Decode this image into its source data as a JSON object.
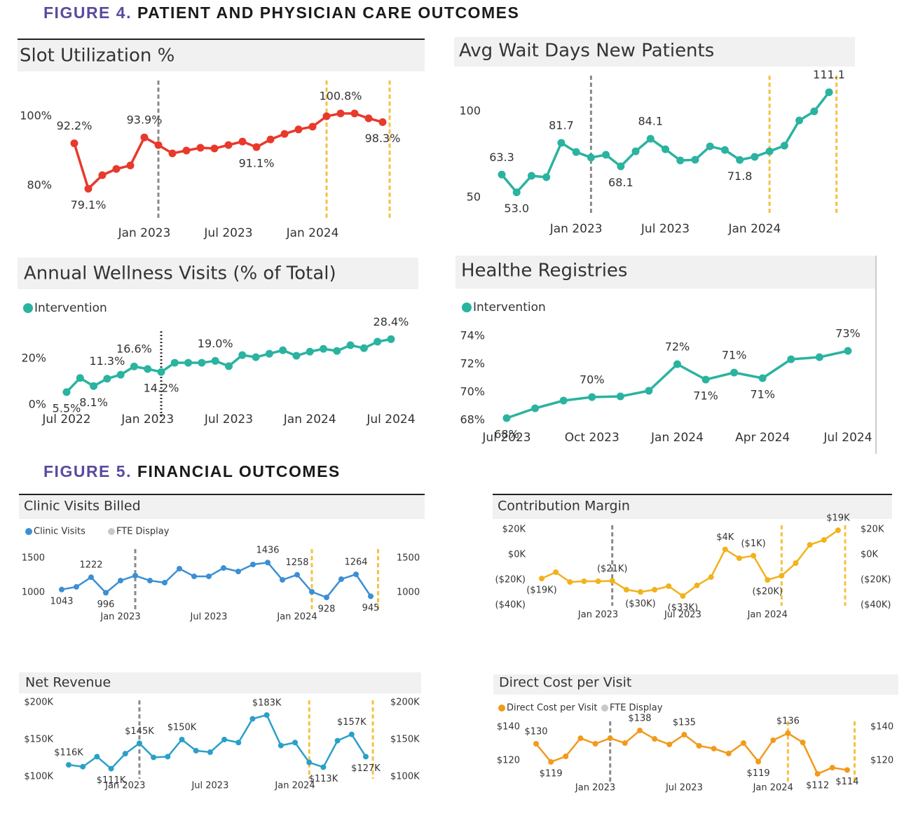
{
  "figures": [
    {
      "label": "FIGURE 4.",
      "title": "PATIENT AND PHYSICIAN CARE OUTCOMES"
    },
    {
      "label": "FIGURE 5.",
      "title": "FINANCIAL OUTCOMES"
    }
  ],
  "chart_data": [
    {
      "type": "line",
      "title": "Slot Utilization %",
      "categories": [
        null,
        null,
        null,
        null,
        null,
        "Jan 2023",
        null,
        null,
        null,
        null,
        null,
        "Jul 2023",
        null,
        null,
        null,
        null,
        null,
        "Jan 2024",
        null,
        null,
        null,
        null,
        null
      ],
      "color": "#e8392c",
      "values": [
        92.2,
        79.1,
        83,
        84.8,
        85.8,
        93.9,
        91.7,
        89.3,
        90.1,
        90.9,
        90.7,
        91.7,
        92.7,
        91.1,
        93.3,
        94.9,
        96.2,
        97,
        100,
        100.8,
        100.8,
        99.4,
        98.3
      ],
      "value_labels": [
        "92.2%",
        "79.1%",
        null,
        null,
        null,
        "93.9%",
        null,
        null,
        null,
        null,
        null,
        null,
        null,
        "91.1%",
        null,
        null,
        null,
        null,
        null,
        "100.8%",
        null,
        null,
        "98.3%"
      ],
      "ylim": [
        70,
        110
      ],
      "yticks": [
        {
          "value": 80,
          "label": "80%"
        },
        {
          "value": 100,
          "label": "100%"
        }
      ]
    },
    {
      "type": "line",
      "title": "Avg Wait Days New Patients",
      "categories": [
        null,
        null,
        null,
        null,
        null,
        "Jan 2023",
        null,
        null,
        null,
        null,
        null,
        "Jul 2023",
        null,
        null,
        null,
        null,
        null,
        "Jan 2024",
        null,
        null,
        null,
        null,
        null
      ],
      "color": "#2ab3a0",
      "values": [
        63.3,
        53.0,
        62.6,
        61.8,
        81.7,
        76.4,
        73.2,
        74.8,
        68.1,
        76.8,
        84.1,
        78,
        71.5,
        71.9,
        79.7,
        77.6,
        71.8,
        73.6,
        76.8,
        80.1,
        94.7,
        100,
        111.1
      ],
      "value_labels": [
        "63.3",
        "53.0",
        null,
        null,
        "81.7",
        null,
        null,
        null,
        "68.1",
        null,
        "84.1",
        null,
        null,
        null,
        null,
        null,
        "71.8",
        null,
        null,
        null,
        null,
        null,
        "111.1"
      ],
      "ylim": [
        40,
        120
      ],
      "yticks": [
        50,
        100
      ]
    },
    {
      "type": "line",
      "title": "Annual Wellness Visits (% of Total)",
      "categories": [
        "Jul 2022",
        null,
        null,
        null,
        null,
        null,
        "Jan 2023",
        null,
        null,
        null,
        null,
        null,
        "Jul 2023",
        null,
        null,
        null,
        null,
        null,
        "Jan 2024",
        null,
        null,
        null,
        null,
        null,
        "Jul 2024"
      ],
      "series": [
        {
          "name": "Intervention",
          "color": "#2ab3a0",
          "values": [
            5.5,
            11.6,
            8.1,
            11.3,
            13.0,
            16.6,
            15.5,
            14.2,
            18.2,
            18.2,
            18.2,
            19.0,
            16.7,
            21.5,
            20.6,
            22.1,
            23.6,
            21.2,
            23.0,
            24.2,
            23.3,
            25.8,
            24.5,
            27.3,
            28.4
          ],
          "value_labels": [
            "5.5%",
            null,
            "8.1%",
            "11.3%",
            null,
            "16.6%",
            null,
            "14.2%",
            null,
            null,
            null,
            "19.0%",
            null,
            null,
            null,
            null,
            null,
            null,
            null,
            null,
            null,
            null,
            null,
            null,
            "28.4%"
          ]
        }
      ],
      "ylim": [
        -4,
        33
      ],
      "yticks": [
        {
          "value": 0,
          "label": "0%"
        },
        {
          "value": 20,
          "label": "20%"
        }
      ]
    },
    {
      "type": "line",
      "title": "Healthe Registries",
      "categories": [
        "Jul 2023",
        null,
        null,
        "Oct 2023",
        null,
        null,
        "Jan 2024",
        null,
        null,
        "Apr 2024",
        null,
        null,
        "Jul 2024"
      ],
      "series": [
        {
          "name": "Intervention",
          "color": "#2ab3a0",
          "values": [
            68.15,
            68.85,
            69.4,
            69.65,
            69.7,
            70.1,
            72,
            70.9,
            71.4,
            71.0,
            72.35,
            72.5,
            72.95
          ],
          "value_labels": [
            "68%",
            null,
            null,
            "70%",
            null,
            null,
            "72%",
            "71%",
            "71%",
            "71%",
            null,
            null,
            "73%"
          ]
        }
      ],
      "ylim": [
        67.7,
        74.8
      ],
      "yticks": [
        {
          "value": 68,
          "label": "68%"
        },
        {
          "value": 70,
          "label": "70%"
        },
        {
          "value": 72,
          "label": "72%"
        },
        {
          "value": 74,
          "label": "74%"
        }
      ]
    },
    {
      "type": "line",
      "title": "Clinic Visits Billed",
      "categories": [
        null,
        null,
        null,
        null,
        "Jan 2023",
        null,
        null,
        null,
        null,
        null,
        "Jul 2023",
        null,
        null,
        null,
        null,
        null,
        "Jan 2024",
        null,
        null,
        null,
        null,
        null
      ],
      "series": [
        {
          "name": "Clinic Visits",
          "color": "#3b8fd4",
          "values": [
            1043,
            1082,
            1222,
            996,
            1173,
            1245,
            1173,
            1143,
            1347,
            1235,
            1235,
            1357,
            1306,
            1408,
            1436,
            1184,
            1258,
            1010,
            928,
            1194,
            1264,
            945
          ],
          "value_labels": [
            "1043",
            null,
            "1222",
            "996",
            null,
            null,
            null,
            null,
            null,
            null,
            null,
            null,
            null,
            null,
            "1436",
            null,
            "1258",
            null,
            "928",
            null,
            "1264",
            "945"
          ]
        },
        {
          "name": "FTE Display",
          "color": "#c8c8c8",
          "axis": "y2",
          "values": [
            null,
            null,
            null,
            null,
            null,
            null,
            null,
            null,
            null,
            null,
            null,
            null,
            null,
            null,
            null,
            null,
            null,
            null,
            null,
            null,
            null,
            null
          ]
        }
      ],
      "ylim": [
        750,
        1620
      ],
      "yticks": [
        1000,
        1500
      ],
      "y2lim": [
        750,
        1620
      ],
      "y2ticks": [
        1000,
        1500
      ]
    },
    {
      "type": "line",
      "title": "Contribution Margin",
      "categories": [
        null,
        null,
        null,
        null,
        "Jan 2023",
        null,
        null,
        null,
        null,
        null,
        "Jul 2023",
        null,
        null,
        null,
        null,
        null,
        "Jan 2024",
        null,
        null,
        null,
        null,
        null
      ],
      "color": "#f2b21b",
      "values": [
        -18.9,
        -13.9,
        -21.7,
        -21.1,
        -21.1,
        -20.8,
        -27.8,
        -29.6,
        -27.8,
        -25,
        -32.8,
        -24.4,
        -17.8,
        4.2,
        -2.8,
        -0.8,
        -20,
        -16.7,
        -6.7,
        7.8,
        11.7,
        19.4
      ],
      "value_labels": [
        "($19K)",
        null,
        null,
        null,
        null,
        "($21K)",
        null,
        "($30K)",
        null,
        null,
        "($33K)",
        null,
        null,
        "$4K",
        null,
        "($1K)",
        "($20K)",
        null,
        null,
        null,
        null,
        "$19K"
      ],
      "ylim": [
        -46,
        26
      ],
      "yticks": [
        {
          "value": -40,
          "label": "($40K)"
        },
        {
          "value": -20,
          "label": "($20K)"
        },
        {
          "value": 0,
          "label": "$0K"
        },
        {
          "value": 20,
          "label": "$20K"
        }
      ],
      "y2lim": [
        -46,
        26
      ],
      "y2ticks": [
        {
          "value": -40,
          "label": "($40K)"
        },
        {
          "value": -20,
          "label": "($20K)"
        },
        {
          "value": 0,
          "label": "$0K"
        },
        {
          "value": 20,
          "label": "$20K"
        }
      ]
    },
    {
      "type": "line",
      "title": "Net Revenue",
      "categories": [
        null,
        null,
        null,
        null,
        "Jan 2023",
        null,
        null,
        null,
        null,
        null,
        "Jul 2023",
        null,
        null,
        null,
        null,
        null,
        "Jan 2024",
        null,
        null,
        null,
        null,
        null
      ],
      "color": "#2aa0c8",
      "values": [
        116,
        113.5,
        127,
        110.8,
        131,
        145,
        126,
        127,
        150,
        135,
        133,
        150,
        146,
        178,
        183,
        142,
        146,
        119.2,
        112.8,
        148.5,
        157,
        127
      ],
      "value_labels": [
        "$116K",
        null,
        null,
        "$111K",
        null,
        "$145K",
        null,
        null,
        "$150K",
        null,
        null,
        null,
        null,
        null,
        "$183K",
        null,
        null,
        null,
        "$113K",
        null,
        "$157K",
        "$127K"
      ],
      "ylim": [
        89,
        208
      ],
      "yticks": [
        {
          "value": 100,
          "label": "$100K"
        },
        {
          "value": 150,
          "label": "$150K"
        },
        {
          "value": 200,
          "label": "$200K"
        }
      ],
      "y2lim": [
        89,
        208
      ],
      "y2ticks": [
        {
          "value": 100,
          "label": "$100K"
        },
        {
          "value": 150,
          "label": "$150K"
        },
        {
          "value": 200,
          "label": "$200K"
        }
      ]
    },
    {
      "type": "line",
      "title": "Direct Cost per Visit",
      "categories": [
        null,
        null,
        null,
        null,
        "Jan 2023",
        null,
        null,
        null,
        null,
        null,
        "Jul 2023",
        null,
        null,
        null,
        null,
        null,
        "Jan 2024",
        null,
        null,
        null,
        null,
        null
      ],
      "series": [
        {
          "name": "Direct Cost per Visit",
          "color": "#f29a1b",
          "values": [
            130,
            119.2,
            122.5,
            133.3,
            130,
            133.3,
            130.4,
            137.9,
            132.9,
            129.6,
            135.4,
            128.8,
            127.1,
            124.2,
            130.4,
            119.4,
            132.1,
            136.3,
            130.8,
            112.1,
            115.8,
            114.4
          ],
          "value_labels": [
            "$130",
            "$119",
            null,
            null,
            null,
            null,
            null,
            "$138",
            null,
            null,
            "$135",
            null,
            null,
            null,
            null,
            "$119",
            null,
            "$136",
            null,
            "$112",
            null,
            "$114"
          ]
        },
        {
          "name": "FTE Display",
          "color": "#c8c8c8",
          "axis": "y2",
          "values": [
            null,
            null,
            null,
            null,
            null,
            null,
            null,
            null,
            null,
            null,
            null,
            null,
            null,
            null,
            null,
            null,
            null,
            null,
            null,
            null,
            null,
            null
          ]
        }
      ],
      "ylim": [
        107,
        146
      ],
      "yticks": [
        {
          "value": 120,
          "label": "$120"
        },
        {
          "value": 140,
          "label": "$140"
        }
      ],
      "y2lim": [
        107,
        146
      ],
      "y2ticks": [
        {
          "value": 120,
          "label": "$120"
        },
        {
          "value": 140,
          "label": "$140"
        }
      ]
    }
  ]
}
